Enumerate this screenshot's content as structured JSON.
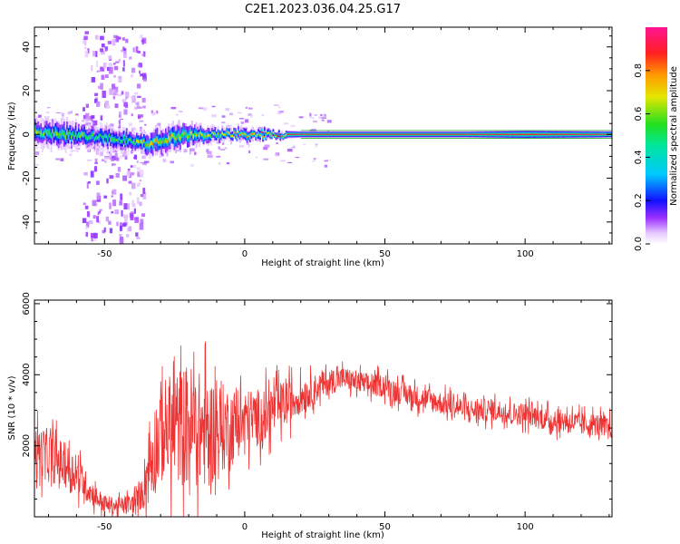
{
  "figure_title": "C2E1.2023.036.04.25.G17",
  "colors": {
    "snr_line": "#ee3333",
    "axes": "#000000",
    "spectrogram_background": "#ffffff",
    "reference_band": "#00aa00"
  },
  "colorbar": {
    "label": "Normalized spectral amplitude",
    "ticks": [
      "0.0",
      "0.2",
      "0.4",
      "0.6",
      "0.8"
    ],
    "tick_values": [
      0.0,
      0.2,
      0.4,
      0.6,
      0.8
    ],
    "range": [
      0,
      1
    ],
    "colormap": "rainbow (white→purple→blue→cyan→green→yellow→orange→red→magenta)"
  },
  "chart_data": [
    {
      "type": "heatmap",
      "title": "",
      "xlabel": "Height of straight line (km)",
      "ylabel": "Frequency (Hz)",
      "xlim": [
        -75,
        131
      ],
      "ylim": [
        -50,
        49
      ],
      "x_ticks": [
        "-50",
        "0",
        "50",
        "100"
      ],
      "x_tick_values": [
        -50,
        0,
        50,
        100
      ],
      "y_ticks": [
        "-40",
        "-20",
        "0",
        "20",
        "40"
      ],
      "y_tick_values": [
        -40,
        -20,
        0,
        20,
        40
      ],
      "grid": false,
      "description_of_content": "Narrow carrier line near 0 Hz; noisy/broad around heights -75 to -10 km, sharpening to a thin red line at ~0 Hz from ~15 km to 131 km; weak purple speckle spread from -55 to -40 km",
      "ridge": {
        "x": [
          -75,
          -65,
          -55,
          -45,
          -40,
          -35,
          -30,
          -25,
          -20,
          -15,
          -10,
          -5,
          0,
          10,
          20,
          40,
          60,
          80,
          100,
          131
        ],
        "frequency": [
          1,
          0,
          -1,
          -2,
          -3,
          -4,
          -3,
          -1,
          0,
          0,
          0,
          0,
          0,
          0,
          0,
          0,
          0,
          0,
          0,
          0
        ],
        "bandwidth": [
          6,
          6,
          5,
          5,
          4,
          5,
          6,
          6,
          5,
          4,
          3,
          3,
          3,
          2,
          1.5,
          1.5,
          1.5,
          1.5,
          2,
          1.5
        ],
        "peak_amplitude": [
          0.6,
          0.6,
          0.55,
          0.55,
          0.6,
          0.75,
          0.7,
          0.7,
          0.7,
          0.65,
          0.7,
          0.75,
          0.8,
          0.85,
          0.9,
          0.9,
          0.9,
          0.9,
          0.9,
          0.95
        ]
      }
    },
    {
      "type": "line",
      "title": "",
      "xlabel": "Height of straight line (km)",
      "ylabel": "SNR (10 * v/v)",
      "xlim": [
        -75,
        131
      ],
      "ylim": [
        0,
        6100
      ],
      "x_ticks": [
        "-50",
        "0",
        "50",
        "100"
      ],
      "x_tick_values": [
        -50,
        0,
        50,
        100
      ],
      "y_ticks": [
        "2000",
        "4000",
        "6000"
      ],
      "y_tick_values": [
        2000,
        4000,
        6000
      ],
      "grid": false,
      "series": [
        {
          "name": "",
          "x": [
            -75,
            -70,
            -65,
            -60,
            -55,
            -50,
            -45,
            -40,
            -37,
            -34,
            -30,
            -25,
            -20,
            -15,
            -10,
            -5,
            0,
            5,
            10,
            15,
            20,
            25,
            30,
            35,
            40,
            45,
            50,
            55,
            60,
            65,
            70,
            75,
            80,
            85,
            90,
            95,
            100,
            105,
            110,
            115,
            120,
            125,
            131
          ],
          "values": [
            1900,
            1700,
            1500,
            1200,
            700,
            350,
            300,
            350,
            600,
            1500,
            2400,
            2500,
            2600,
            2400,
            2400,
            2600,
            2700,
            2800,
            3000,
            3200,
            3400,
            3600,
            3800,
            3900,
            3800,
            3700,
            3700,
            3500,
            3400,
            3300,
            3200,
            3100,
            3000,
            3000,
            3000,
            2900,
            2900,
            2800,
            2700,
            2700,
            2600,
            2600,
            2500
          ],
          "noise_amplitude": [
            900,
            900,
            800,
            700,
            450,
            300,
            300,
            350,
            500,
            1500,
            1800,
            2000,
            2200,
            2000,
            1800,
            1300,
            1100,
            1000,
            900,
            800,
            600,
            500,
            450,
            400,
            400,
            400,
            400,
            400,
            400,
            400,
            400,
            400,
            400,
            400,
            400,
            400,
            400,
            400,
            400,
            400,
            400,
            400,
            400
          ]
        }
      ]
    }
  ]
}
